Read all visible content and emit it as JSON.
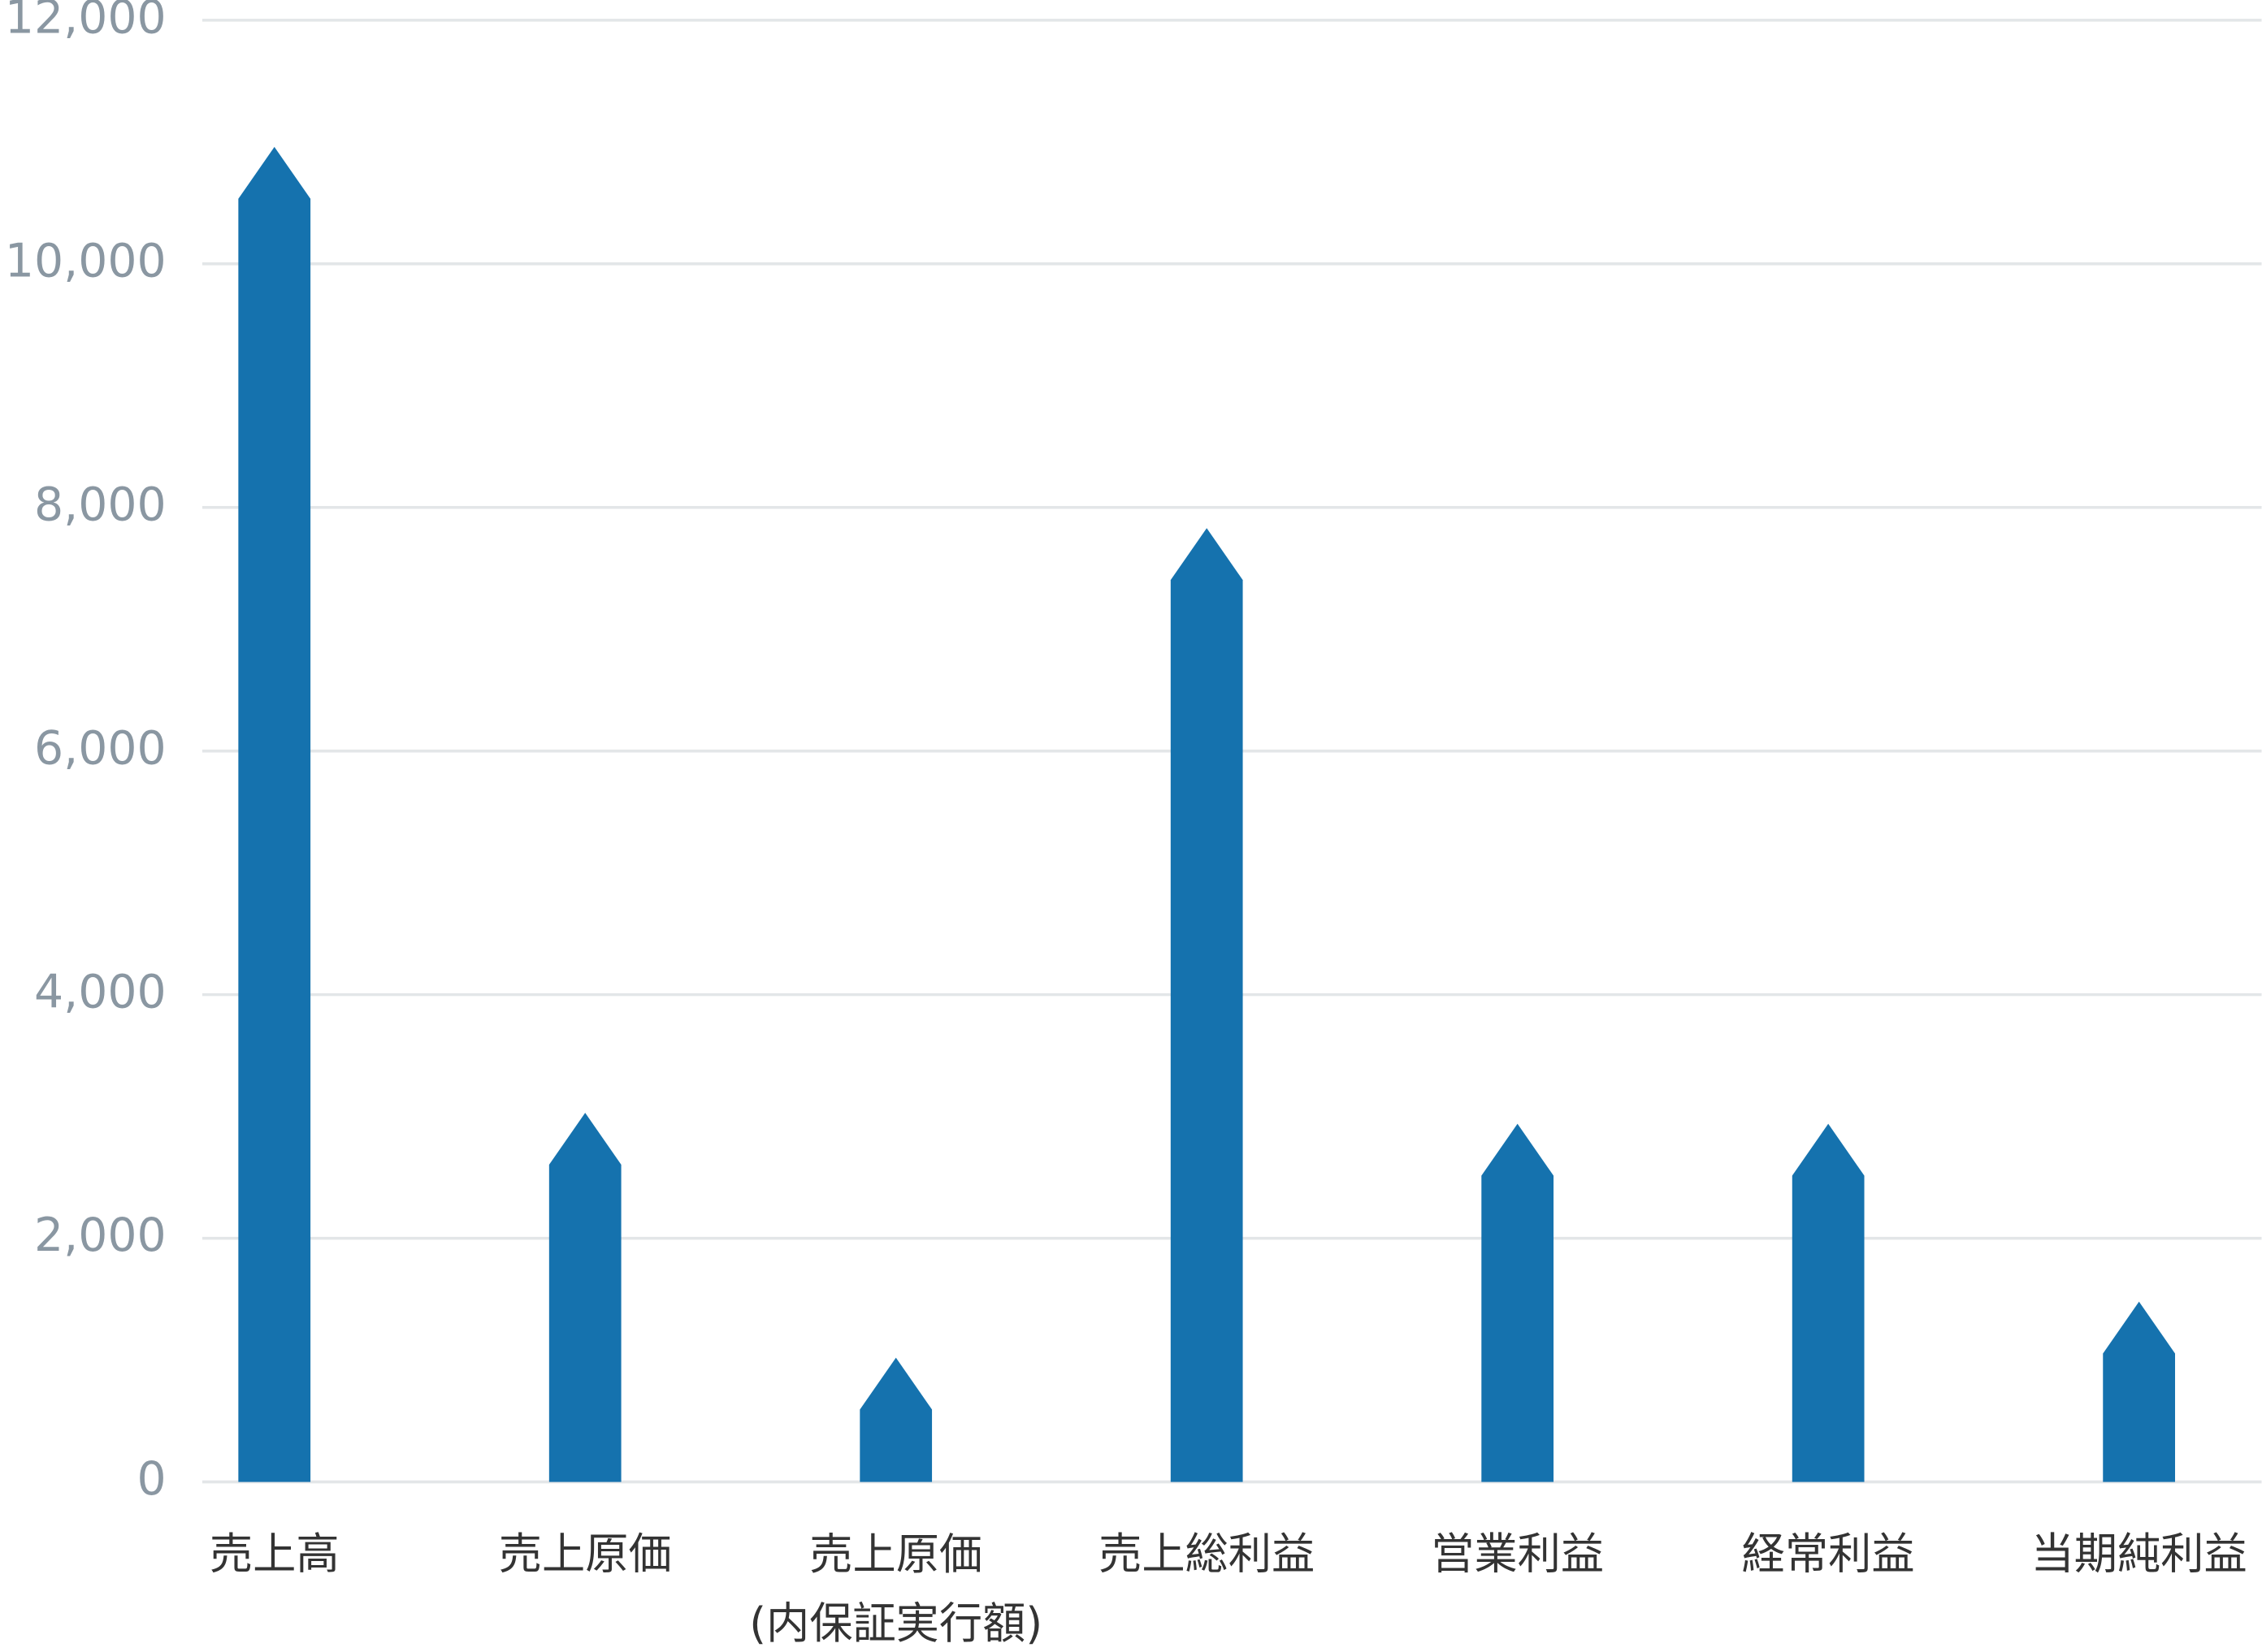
{
  "chart_data": {
    "type": "bar",
    "categories": [
      "売上高",
      "売上原価",
      "売上原価\n(内保証実行額)",
      "売上総利益",
      "営業利益",
      "経常利益",
      "当期純利益"
    ],
    "values": [
      10960,
      3030,
      1020,
      7830,
      2940,
      2940,
      1480
    ],
    "color": "#1572ae",
    "ylim": [
      0,
      12000
    ],
    "yticks": [
      0,
      {
        "value": 2000,
        "label": "2,000"
      },
      {
        "value": 4000,
        "label": "4,000"
      },
      {
        "value": 6000,
        "label": "6,000"
      },
      {
        "value": 8000,
        "label": "8,000"
      },
      {
        "value": 10000,
        "label": "10,000"
      },
      {
        "value": 12000,
        "label": "12,000"
      }
    ],
    "grid": true
  }
}
